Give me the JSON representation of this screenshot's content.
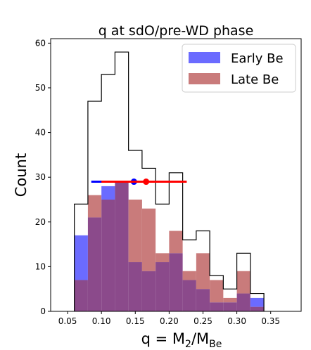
{
  "chart_data": {
    "type": "bar",
    "title": "q at sdO/pre-WD phase",
    "xlabel_main": "q = M",
    "xlabel_sub1": "2",
    "xlabel_slash": "/M",
    "xlabel_sub2": "Be",
    "ylabel": "Count",
    "xlim": [
      0.025,
      0.395
    ],
    "ylim": [
      0,
      61
    ],
    "bin_edges": [
      0.06,
      0.08,
      0.1,
      0.12,
      0.14,
      0.16,
      0.18,
      0.2,
      0.22,
      0.24,
      0.26,
      0.28,
      0.3,
      0.32,
      0.34
    ],
    "x_ticks": [
      "0.05",
      "0.10",
      "0.15",
      "0.20",
      "0.25",
      "0.30",
      "0.35"
    ],
    "x_tick_values": [
      0.05,
      0.1,
      0.15,
      0.2,
      0.25,
      0.3,
      0.35
    ],
    "y_ticks": [
      "0",
      "10",
      "20",
      "30",
      "40",
      "50",
      "60"
    ],
    "y_tick_values": [
      0,
      10,
      20,
      30,
      40,
      50,
      60
    ],
    "legend_position": "top-right",
    "series": [
      {
        "name": "Early Be",
        "color": "#6b6bff",
        "values": [
          17,
          21,
          28,
          29,
          11,
          9,
          11,
          13,
          7,
          5,
          2,
          2,
          4,
          3
        ]
      },
      {
        "name": "Late Be",
        "color": "#c97b7b",
        "values": [
          7,
          26,
          25,
          29,
          25,
          23,
          13,
          18,
          9,
          13,
          7,
          3,
          9,
          1
        ]
      },
      {
        "name": "Total",
        "color": "#000000",
        "values": [
          24,
          47,
          53,
          58,
          36,
          32,
          24,
          31,
          16,
          18,
          8,
          5,
          13,
          4
        ]
      }
    ],
    "overlap_color": "#8b4a8b",
    "ranges": [
      {
        "series": "Early Be",
        "color": "#0000ff",
        "low": 0.085,
        "median": 0.148,
        "high": 0.205,
        "y": 29
      },
      {
        "series": "Late Be",
        "color": "#ff0000",
        "low": 0.1,
        "median": 0.166,
        "high": 0.226,
        "y": 29
      }
    ]
  }
}
